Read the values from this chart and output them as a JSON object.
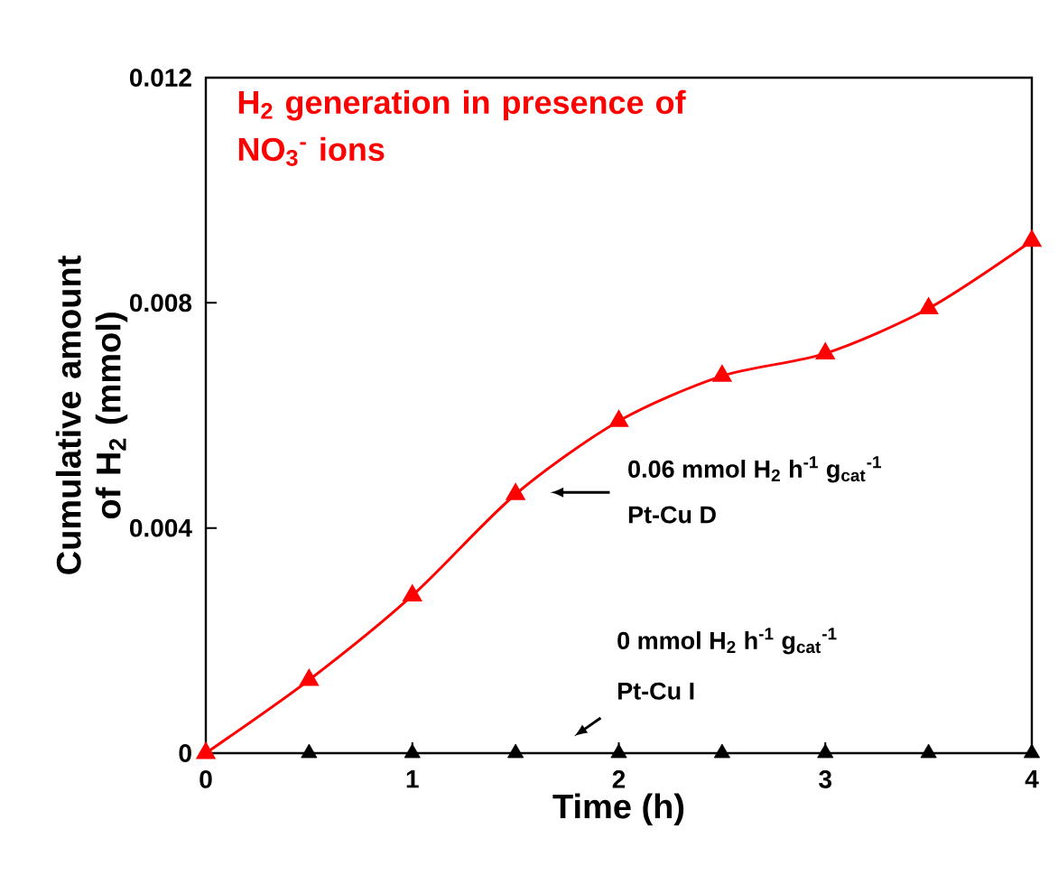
{
  "chart_data": {
    "type": "line",
    "title": "H$_{2}$ generation in presence of NO$_{3}$$^{-}$ ions",
    "xlabel": "Time (h)",
    "ylabel": "Cumulative amount of H$_{2}$ (mmol)",
    "xlim": [
      0,
      4
    ],
    "xticks": [
      0,
      1,
      2,
      3,
      4
    ],
    "ylim": [
      0,
      0.012
    ],
    "yticks": [
      0,
      0.004,
      0.008,
      0.012
    ],
    "marker": "triangle",
    "grid": false,
    "series": [
      {
        "color": "#ff0000",
        "x": [
          0,
          0.5,
          1,
          1.5,
          2,
          2.5,
          3,
          3.5,
          4
        ],
        "values": [
          0,
          0.0013,
          0.0028,
          0.0046,
          0.0059,
          0.0067,
          0.0071,
          0.0079,
          0.0091
        ]
      },
      {
        "type": "scatter",
        "color": "#000000",
        "x": [
          0.5,
          1,
          1.5,
          2,
          2.5,
          3,
          3.5,
          4
        ],
        "values": [
          0,
          0,
          0,
          0,
          0,
          0,
          0,
          0
        ]
      }
    ],
    "annotations": [
      "0.06 mmol H$_{2}$ h$^{-1}$ g$_{cat}$$^{-1}$",
      "Pt-Cu D",
      "0 mmol H$_{2}$ h$^{-1}$ g$_{cat}$$^{-1}$",
      "Pt-Cu I"
    ]
  }
}
